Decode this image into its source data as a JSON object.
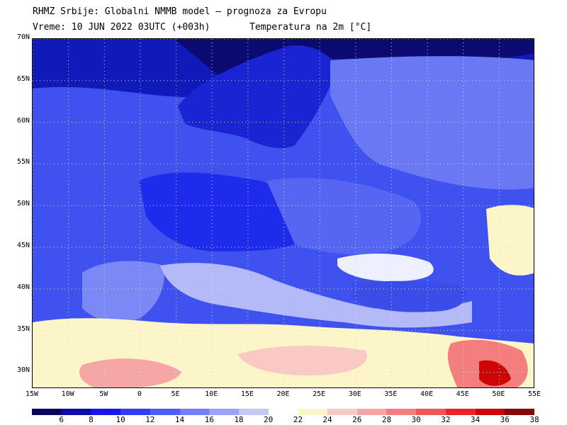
{
  "header": {
    "line1": "RHMZ Srbije: Globalni NMMB model — prognoza za Evropu",
    "line2_time": "Vreme: 10 JUN 2022 03UTC (+003h)",
    "line2_field": "Temperatura na 2m [°C]"
  },
  "map": {
    "lon_range": [
      -15,
      55
    ],
    "lat_range": [
      28,
      70
    ],
    "lat_labels": [
      "30N",
      "35N",
      "40N",
      "45N",
      "50N",
      "55N",
      "60N",
      "65N",
      "70N"
    ],
    "lat_values": [
      30,
      35,
      40,
      45,
      50,
      55,
      60,
      65,
      70
    ],
    "lon_labels": [
      "15W",
      "10W",
      "5W",
      "0",
      "5E",
      "10E",
      "15E",
      "20E",
      "25E",
      "30E",
      "35E",
      "40E",
      "45E",
      "50E",
      "55E"
    ],
    "lon_values": [
      -15,
      -10,
      -5,
      0,
      5,
      10,
      15,
      20,
      25,
      30,
      35,
      40,
      45,
      50,
      55
    ],
    "grid": "dotted"
  },
  "colorbar": {
    "colors": [
      "#08085a",
      "#0c0ca8",
      "#1717e6",
      "#2f3ef2",
      "#4d5ef5",
      "#7080f5",
      "#9aa4f6",
      "#c4c8f8",
      "#ffffff",
      "#fbf5c8",
      "#fac9c4",
      "#f7a6a6",
      "#f47e7e",
      "#f05555",
      "#ea2424",
      "#cc0606",
      "#820a0a"
    ],
    "labels": [
      "6",
      "8",
      "10",
      "12",
      "14",
      "16",
      "18",
      "20",
      "22",
      "24",
      "26",
      "28",
      "30",
      "32",
      "34",
      "36",
      "38"
    ]
  }
}
